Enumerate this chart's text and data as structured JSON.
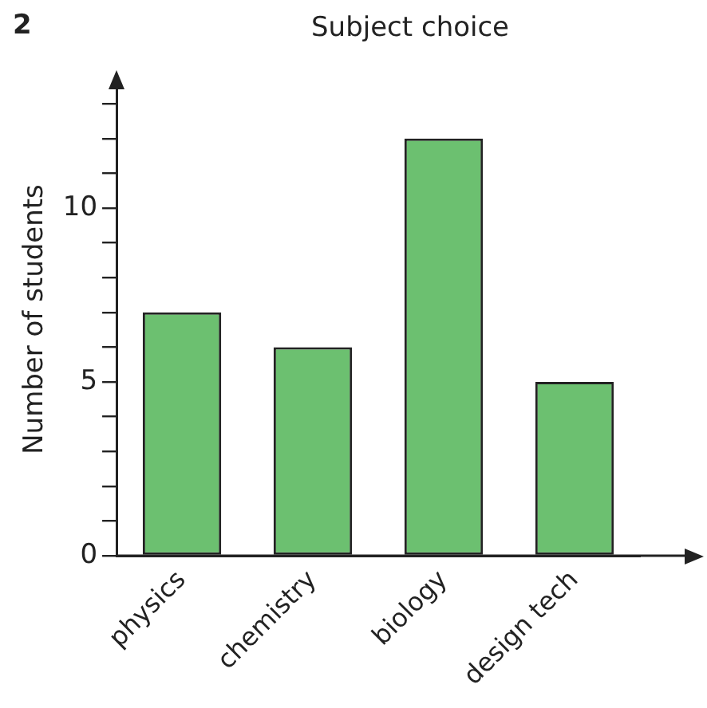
{
  "chart_data": {
    "type": "bar",
    "title": "Subject choice",
    "ylabel": "Number of students",
    "annotations": [
      "2"
    ],
    "categories": [
      "physics",
      "chemistry",
      "biology",
      "design tech"
    ],
    "values": [
      7,
      6,
      12,
      5
    ],
    "color": "#6cc070",
    "ylim": [
      0,
      13.6
    ],
    "yticks": [
      0,
      {
        "value": 1,
        "label": null
      },
      {
        "value": 2,
        "label": null
      },
      {
        "value": 3,
        "label": null
      },
      {
        "value": 4,
        "label": null
      },
      5,
      {
        "value": 6,
        "label": null
      },
      {
        "value": 7,
        "label": null
      },
      {
        "value": 8,
        "label": null
      },
      {
        "value": 9,
        "label": null
      },
      10,
      {
        "value": 11,
        "label": null
      },
      {
        "value": 12,
        "label": null
      },
      {
        "value": 13,
        "label": null
      }
    ],
    "grid": false,
    "legend": false
  }
}
